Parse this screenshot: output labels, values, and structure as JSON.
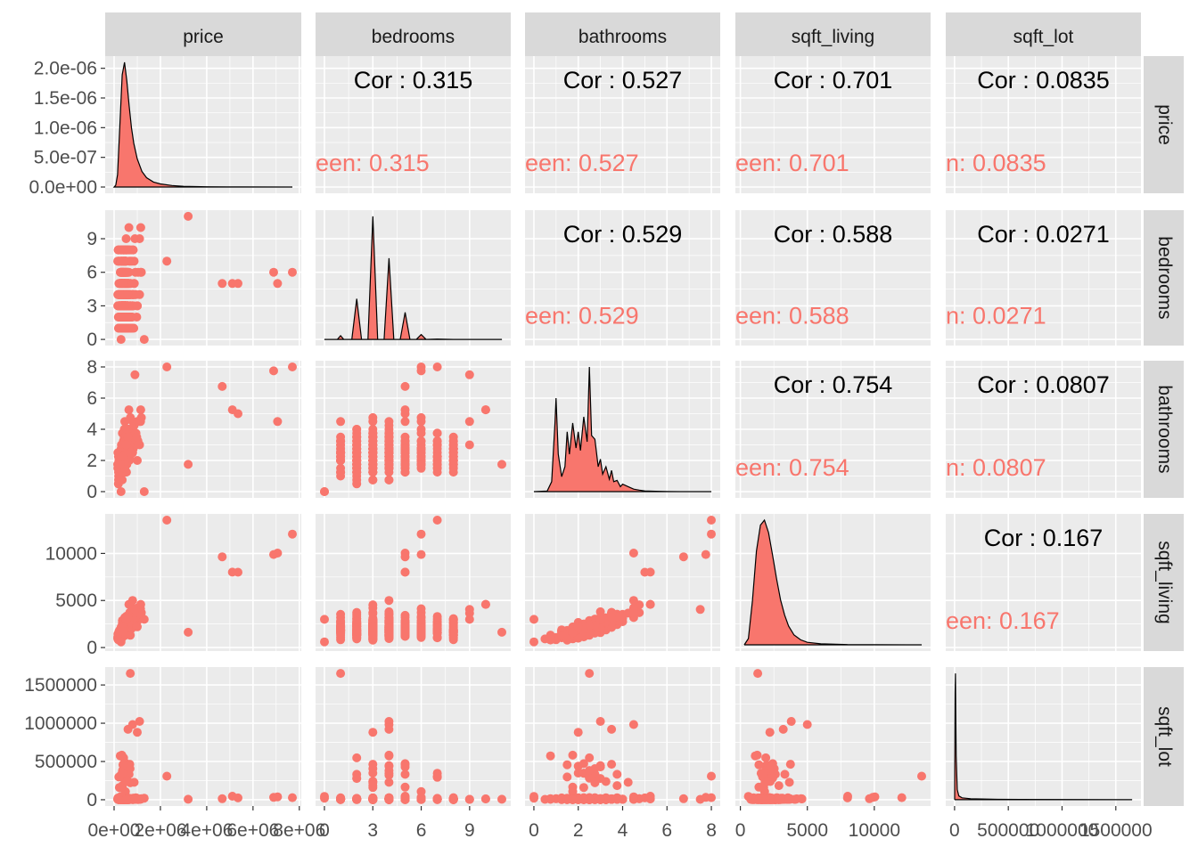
{
  "variables": [
    "price",
    "bedrooms",
    "bathrooms",
    "sqft_living",
    "sqft_lot"
  ],
  "colors": {
    "panel_bg": "#ebebeb",
    "grid": "#ffffff",
    "strip_bg": "#d9d9d9",
    "point": "#f8766d",
    "axis_text": "#4d4d4d"
  },
  "chart_data": {
    "type": "scatter-matrix",
    "columns": [
      {
        "name": "price",
        "range": [
          0,
          7700000
        ],
        "ticks": [
          0,
          2000000,
          4000000,
          6000000,
          8000000
        ],
        "tick_labels": [
          "0e+00",
          "2e+06",
          "4e+06",
          "6e+06",
          "8e+06"
        ]
      },
      {
        "name": "bedrooms",
        "range": [
          0,
          11
        ],
        "ticks": [
          0,
          3,
          6,
          9
        ],
        "tick_labels": [
          "0",
          "3",
          "6",
          "9"
        ]
      },
      {
        "name": "bathrooms",
        "range": [
          0,
          8
        ],
        "ticks": [
          0,
          2,
          4,
          6,
          8
        ],
        "tick_labels": [
          "0",
          "2",
          "4",
          "6",
          "8"
        ]
      },
      {
        "name": "sqft_living",
        "range": [
          290,
          13540
        ],
        "ticks": [
          0,
          5000,
          10000
        ],
        "tick_labels": [
          "0",
          "5000",
          "10000"
        ]
      },
      {
        "name": "sqft_lot",
        "range": [
          520,
          1651359
        ],
        "ticks": [
          0,
          500000,
          1000000,
          1500000
        ],
        "tick_labels": [
          "0",
          "500000",
          "1000000",
          "1500000"
        ]
      }
    ],
    "row_axes": [
      {
        "name": "price",
        "range": [
          0,
          2.1e-06
        ],
        "ticks": [
          0,
          5e-07,
          1e-06,
          1.5e-06,
          2e-06
        ],
        "tick_labels": [
          "0.0e+00",
          "5.0e-07",
          "1.0e-06",
          "1.5e-06",
          "2.0e-06"
        ]
      },
      {
        "name": "bedrooms",
        "range": [
          0,
          11
        ],
        "ticks": [
          0,
          3,
          6,
          9
        ],
        "tick_labels": [
          "0",
          "3",
          "6",
          "9"
        ]
      },
      {
        "name": "bathrooms",
        "range": [
          0,
          8
        ],
        "ticks": [
          0,
          2,
          4,
          6,
          8
        ],
        "tick_labels": [
          "0",
          "2",
          "4",
          "6",
          "8"
        ]
      },
      {
        "name": "sqft_living",
        "range": [
          290,
          13540
        ],
        "ticks": [
          0,
          5000,
          10000
        ],
        "tick_labels": [
          "0",
          "5000",
          "10000"
        ]
      },
      {
        "name": "sqft_lot",
        "range": [
          520,
          1651359
        ],
        "ticks": [
          0,
          500000,
          1000000,
          1500000
        ],
        "tick_labels": [
          "0",
          "500000",
          "1000000",
          "1500000"
        ]
      }
    ],
    "correlations": [
      {
        "row": 0,
        "col": 1,
        "label": "Cor : 0.315",
        "group_label": "een: 0.315"
      },
      {
        "row": 0,
        "col": 2,
        "label": "Cor : 0.527",
        "group_label": "een: 0.527"
      },
      {
        "row": 0,
        "col": 3,
        "label": "Cor : 0.701",
        "group_label": "een: 0.701"
      },
      {
        "row": 0,
        "col": 4,
        "label": "Cor : 0.0835",
        "group_label": "n: 0.0835"
      },
      {
        "row": 1,
        "col": 2,
        "label": "Cor : 0.529",
        "group_label": "een: 0.529"
      },
      {
        "row": 1,
        "col": 3,
        "label": "Cor : 0.588",
        "group_label": "een: 0.588"
      },
      {
        "row": 1,
        "col": 4,
        "label": "Cor : 0.0271",
        "group_label": "n: 0.0271"
      },
      {
        "row": 2,
        "col": 3,
        "label": "Cor : 0.754",
        "group_label": "een: 0.754"
      },
      {
        "row": 2,
        "col": 4,
        "label": "Cor : 0.0807",
        "group_label": "n: 0.0807"
      },
      {
        "row": 3,
        "col": 4,
        "label": "Cor : 0.167",
        "group_label": "een: 0.167"
      }
    ],
    "densities": [
      {
        "var": "price",
        "x": [
          0,
          75000,
          150000,
          250000,
          350000,
          450000,
          550000,
          650000,
          750000,
          850000,
          1000000,
          1200000,
          1400000,
          1700000,
          2000000,
          2500000,
          3000000,
          4000000,
          5500000,
          7700000
        ],
        "y": [
          0,
          3e-08,
          2e-07,
          1e-06,
          1.8e-06,
          2e-06,
          1.7e-06,
          1.3e-06,
          9.5e-07,
          7e-07,
          4.5e-07,
          2.5e-07,
          1.5e-07,
          8e-08,
          5e-08,
          2.5e-08,
          1.2e-08,
          5e-09,
          2e-09,
          0
        ]
      },
      {
        "var": "bedrooms",
        "x": [
          0,
          0.8,
          1,
          1.2,
          1.7,
          2,
          2.3,
          2.7,
          3,
          3.3,
          3.7,
          4,
          4.3,
          4.7,
          5,
          5.3,
          5.7,
          6,
          6.3,
          7,
          8,
          11
        ],
        "y": [
          0,
          0,
          0.03,
          0,
          0,
          0.33,
          0,
          0,
          1.0,
          0,
          0,
          0.66,
          0,
          0,
          0.22,
          0,
          0,
          0.04,
          0,
          0.003,
          0,
          0
        ]
      },
      {
        "var": "bathrooms",
        "x": [
          0,
          0.6,
          0.8,
          0.95,
          1.0,
          1.1,
          1.25,
          1.4,
          1.5,
          1.6,
          1.75,
          1.9,
          2.0,
          2.1,
          2.25,
          2.4,
          2.5,
          2.6,
          2.75,
          2.9,
          3.0,
          3.1,
          3.25,
          3.4,
          3.5,
          3.6,
          3.75,
          3.9,
          4.0,
          4.25,
          4.5,
          4.75,
          5.0,
          5.5,
          6.0,
          8.0
        ],
        "y": [
          0,
          0.005,
          0.08,
          0.55,
          0.75,
          0.3,
          0.12,
          0.2,
          0.48,
          0.3,
          0.55,
          0.35,
          0.48,
          0.33,
          0.6,
          0.4,
          1.0,
          0.45,
          0.42,
          0.2,
          0.26,
          0.14,
          0.2,
          0.1,
          0.17,
          0.08,
          0.09,
          0.04,
          0.06,
          0.04,
          0.02,
          0.012,
          0.006,
          0.003,
          0.001,
          0
        ]
      },
      {
        "var": "sqft_living",
        "x": [
          290,
          600,
          900,
          1200,
          1500,
          1800,
          2100,
          2400,
          2700,
          3000,
          3300,
          3600,
          4000,
          4500,
          5000,
          6000,
          8000,
          13540
        ],
        "y": [
          0,
          0.05,
          0.35,
          0.75,
          0.96,
          1.0,
          0.9,
          0.72,
          0.53,
          0.36,
          0.24,
          0.15,
          0.08,
          0.04,
          0.02,
          0.008,
          0.002,
          0
        ]
      },
      {
        "var": "sqft_lot",
        "x": [
          520,
          2000,
          5000,
          8000,
          11000,
          15000,
          25000,
          40000,
          70000,
          150000,
          400000,
          1651359
        ],
        "y": [
          0,
          0.25,
          0.85,
          1.0,
          0.75,
          0.35,
          0.08,
          0.03,
          0.015,
          0.008,
          0.003,
          0
        ]
      }
    ]
  }
}
